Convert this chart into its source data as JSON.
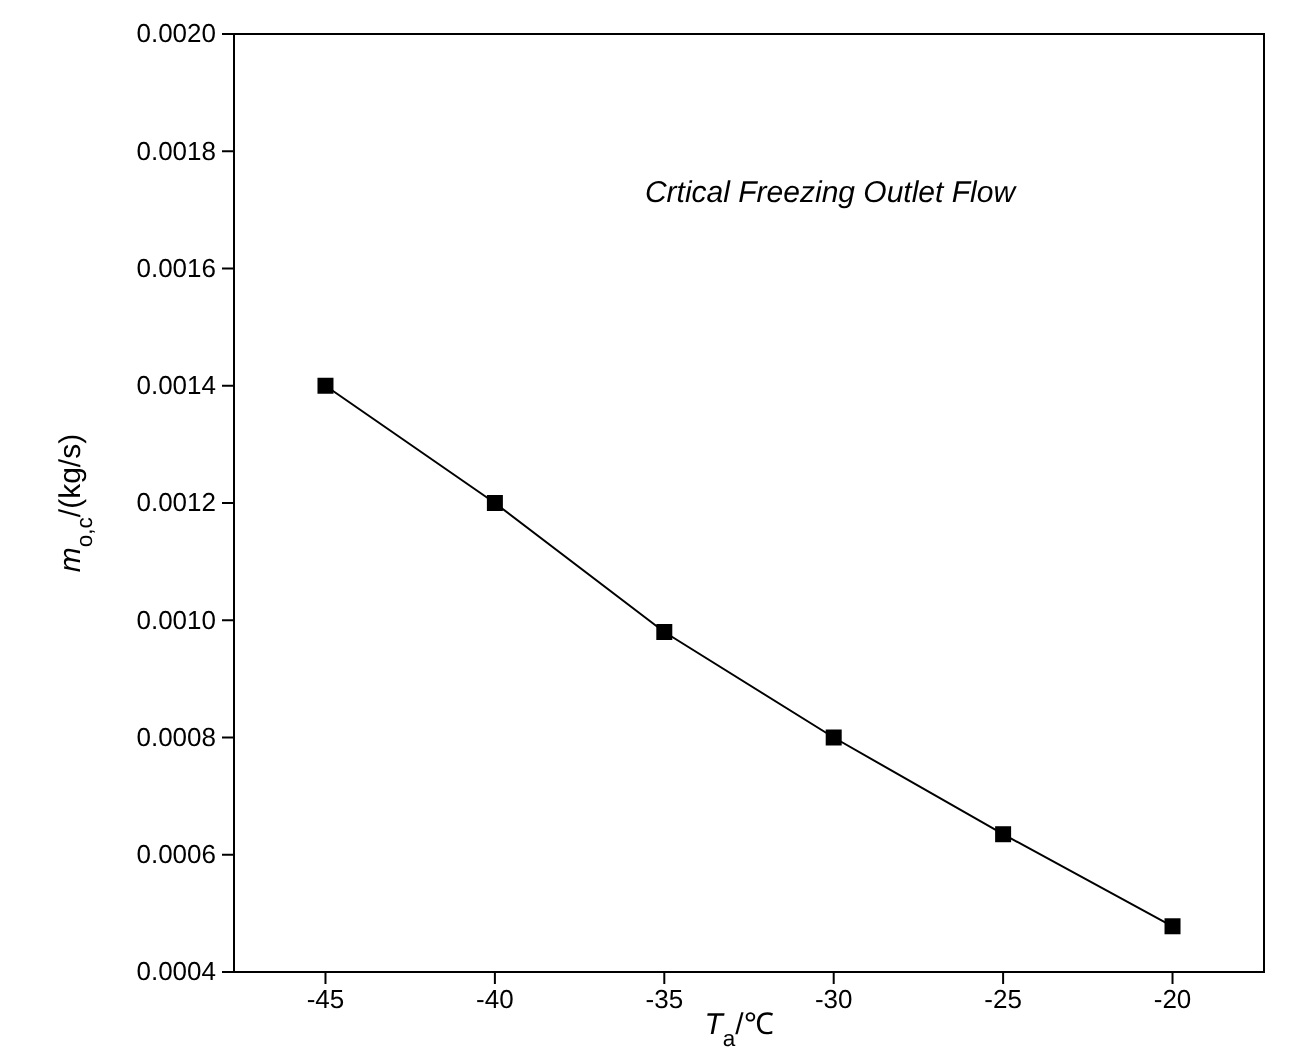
{
  "chart_data": {
    "type": "line",
    "title": "Crtical Freezing Outlet Flow",
    "xlabel": "T$_{a}$/℃",
    "ylabel": "m$_{o,c}$/(kg/s)",
    "x": [
      -45,
      -40,
      -35,
      -30,
      -25,
      -20
    ],
    "series": [
      {
        "color": "#000000",
        "values": [
          0.0014,
          0.0012,
          0.00098,
          0.0008,
          0.000635,
          0.000478
        ]
      }
    ],
    "xlim": [
      -47.7,
      -17.3
    ],
    "xticks": [
      -45,
      -40,
      -35,
      -30,
      -25,
      -20
    ],
    "ylim": [
      0.0004,
      0.002
    ],
    "yticks": [
      {
        "value": 0.0004,
        "label": "0.0004"
      },
      {
        "value": 0.0006,
        "label": "0.0006"
      },
      {
        "value": 0.0008,
        "label": "0.0008"
      },
      {
        "value": 0.001,
        "label": "0.0010"
      },
      {
        "value": 0.0012,
        "label": "0.0012"
      },
      {
        "value": 0.0014,
        "label": "0.0014"
      },
      {
        "value": 0.0016,
        "label": "0.0016"
      },
      {
        "value": 0.0018,
        "label": "0.0018"
      },
      {
        "value": 0.002,
        "label": "0.0020"
      }
    ],
    "grid": false,
    "marker": "square",
    "line_style": "solid"
  }
}
